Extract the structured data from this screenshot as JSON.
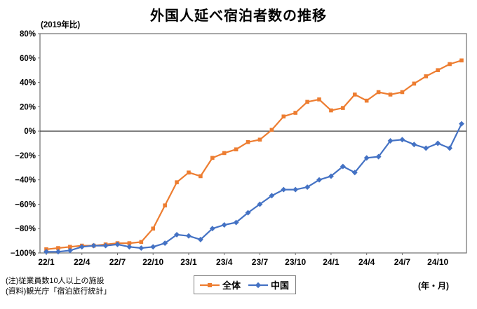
{
  "header": {
    "title": "外国人延べ宿泊者数の推移"
  },
  "notes": {
    "line1": "(注)従業員数10人以上の施設",
    "line2": "(資料)観光庁「宿泊旅行統計」"
  },
  "axis_units": {
    "y": "(2019年比)",
    "x": "(年・月)"
  },
  "legend": {
    "items": [
      {
        "label": "全体",
        "color": "#ED7D31",
        "marker": "square"
      },
      {
        "label": "中国",
        "color": "#4472C4",
        "marker": "diamond"
      }
    ]
  },
  "colors": {
    "overall": "#ED7D31",
    "china": "#4472C4",
    "plot_border": "#6e6e6e",
    "zero_line": "#3f3f3f",
    "text": "#000000"
  },
  "chart_data": {
    "type": "line",
    "title": "外国人延べ宿泊者数の推移",
    "unit_label": "(2019年比)",
    "x_axis_unit": "(年・月)",
    "ylabel": "",
    "xlabel": "",
    "ylim": [
      -100,
      80
    ],
    "ytick_step": 20,
    "ytick_labels": [
      "80%",
      "60%",
      "40%",
      "20%",
      "0%",
      "−20%",
      "−40%",
      "−60%",
      "−80%",
      "−100%"
    ],
    "grid": false,
    "zero_line": true,
    "legend_position": "bottom-center",
    "categories": [
      "22/1",
      "22/2",
      "22/3",
      "22/4",
      "22/5",
      "22/6",
      "22/7",
      "22/8",
      "22/9",
      "22/10",
      "22/11",
      "22/12",
      "23/1",
      "23/2",
      "23/3",
      "23/4",
      "23/5",
      "23/6",
      "23/7",
      "23/8",
      "23/9",
      "23/10",
      "23/11",
      "23/12",
      "24/1",
      "24/2",
      "24/3",
      "24/4",
      "24/5",
      "24/6",
      "24/7",
      "24/8",
      "24/9",
      "24/10",
      "24/11",
      "24/12"
    ],
    "x_tick_labels": [
      "22/1",
      "22/4",
      "22/7",
      "22/10",
      "23/1",
      "23/4",
      "23/7",
      "23/10",
      "24/1",
      "24/4",
      "24/7",
      "24/10"
    ],
    "x_tick_month_indices": [
      0,
      3,
      6,
      9,
      12,
      15,
      18,
      21,
      24,
      27,
      30,
      33
    ],
    "series": [
      {
        "name": "全体",
        "color": "#ED7D31",
        "marker": "square",
        "values": [
          -97,
          -96,
          -95,
          -94,
          -94,
          -93,
          -92,
          -92,
          -91,
          -80,
          -61,
          -42,
          -34,
          -37,
          -22,
          -18,
          -15,
          -9,
          -7,
          1,
          12,
          15,
          24,
          26,
          17,
          19,
          30,
          25,
          32,
          30,
          32,
          39,
          45,
          50,
          55,
          58
        ]
      },
      {
        "name": "中国",
        "color": "#4472C4",
        "marker": "diamond",
        "values": [
          -99,
          -99,
          -98,
          -95,
          -94,
          -94,
          -93,
          -95,
          -96,
          -95,
          -92,
          -85,
          -86,
          -89,
          -80,
          -77,
          -75,
          -67,
          -60,
          -53,
          -48,
          -48,
          -46,
          -40,
          -37,
          -29,
          -34,
          -22,
          -21,
          -8,
          -7,
          -11,
          -14,
          -10,
          -14,
          6
        ]
      }
    ]
  }
}
